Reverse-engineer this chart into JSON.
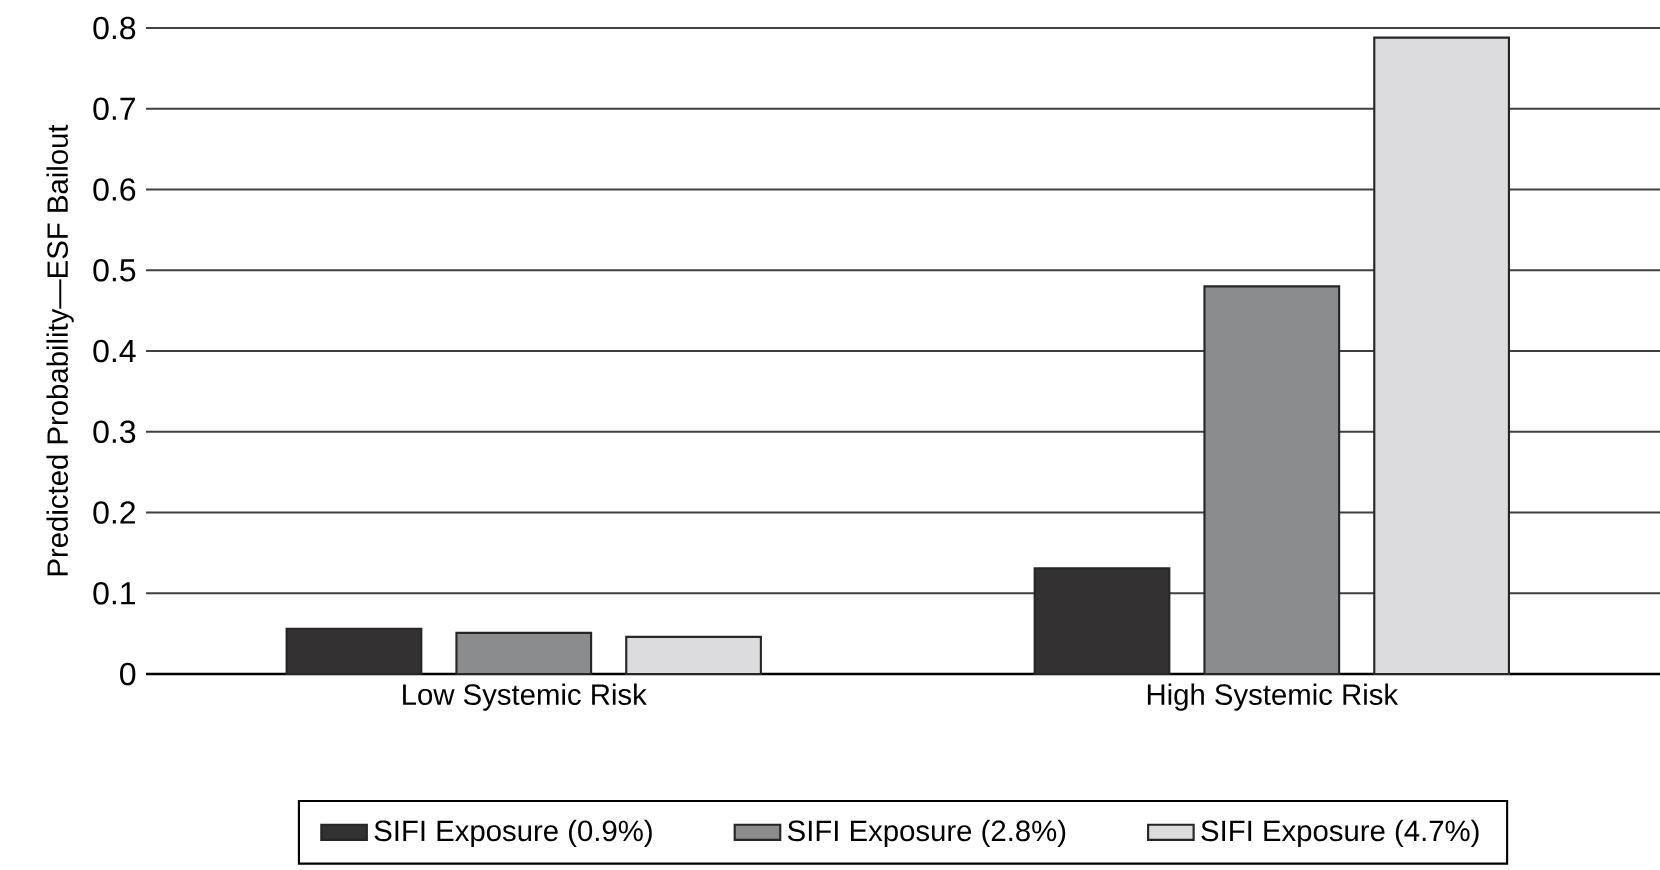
{
  "chart_data": {
    "type": "bar",
    "ylabel": "Predicted Probability—ESF Bailout",
    "categories": [
      "Low Systemic Risk",
      "High Systemic Risk"
    ],
    "series": [
      {
        "name": "SIFI Exposure (0.9%)",
        "color": "#333132",
        "values": [
          0.056,
          0.131
        ]
      },
      {
        "name": "SIFI Exposure (2.8%)",
        "color": "#8b8c8e",
        "values": [
          0.051,
          0.48
        ]
      },
      {
        "name": "SIFI Exposure (4.7%)",
        "color": "#dcdcde",
        "values": [
          0.046,
          0.788
        ]
      }
    ],
    "ylim": [
      0,
      0.8
    ],
    "yticks": [
      0,
      0.1,
      0.2,
      0.3,
      0.4,
      0.5,
      0.6,
      0.7,
      0.8
    ],
    "grid": "y",
    "legend": "bottom"
  }
}
